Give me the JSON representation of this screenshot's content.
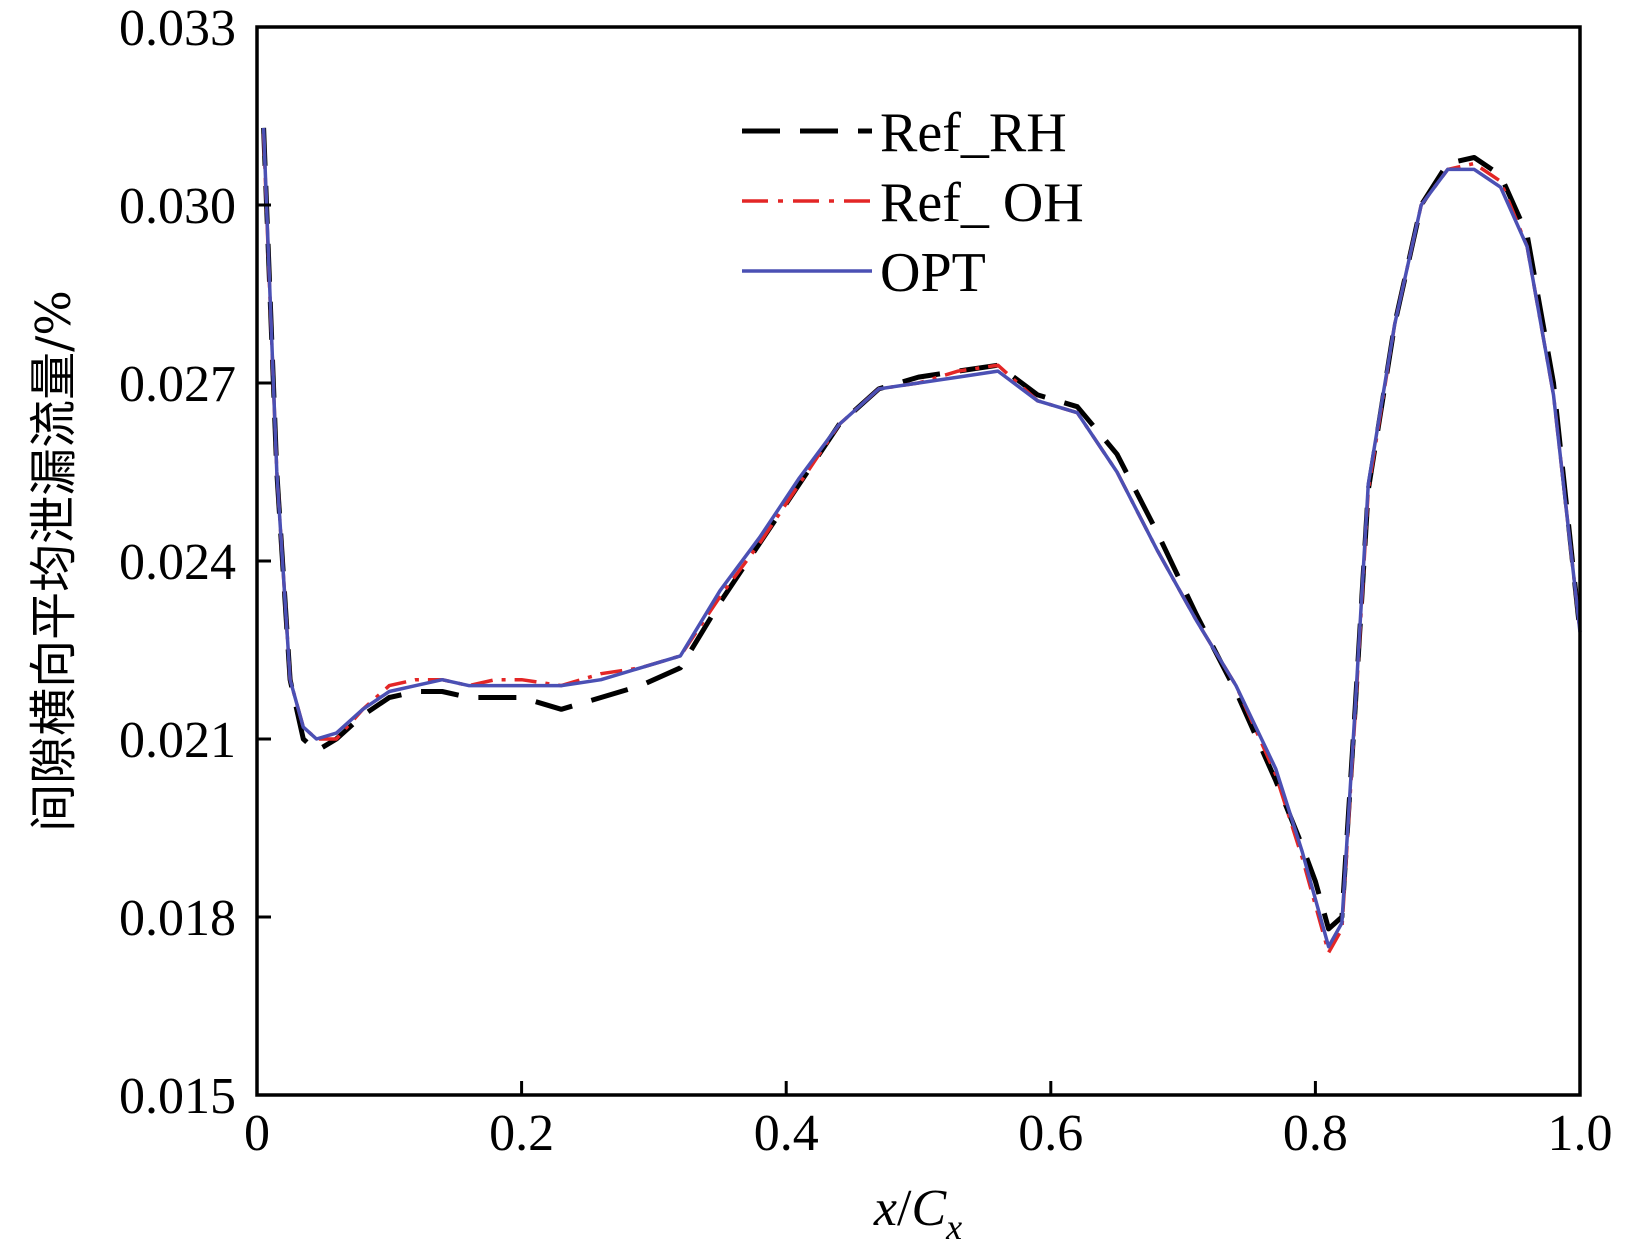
{
  "chart_data": {
    "type": "line",
    "title": "",
    "xlabel": {
      "main": "x",
      "slash": "/",
      "sym": "C",
      "sub": "x"
    },
    "ylabel": "间隙横向平均泄漏流量/%",
    "xlim": [
      0,
      1.0
    ],
    "ylim": [
      0.015,
      0.033
    ],
    "xticks": [
      0,
      0.2,
      0.4,
      0.6,
      0.8,
      1.0
    ],
    "xtick_labels": [
      "0",
      "0.2",
      "0.4",
      "0.6",
      "0.8",
      "1.0"
    ],
    "yticks": [
      0.015,
      0.018,
      0.021,
      0.024,
      0.027,
      0.03,
      0.033
    ],
    "ytick_labels": [
      "0.015",
      "0.018",
      "0.021",
      "0.024",
      "0.027",
      "0.030",
      "0.033"
    ],
    "grid": false,
    "legend_position": "top-center",
    "series": [
      {
        "name": "Ref_RH",
        "color": "#000000",
        "style": "dashed",
        "x": [
          0.005,
          0.015,
          0.025,
          0.035,
          0.045,
          0.06,
          0.08,
          0.1,
          0.12,
          0.14,
          0.16,
          0.18,
          0.2,
          0.23,
          0.26,
          0.29,
          0.32,
          0.35,
          0.38,
          0.41,
          0.44,
          0.47,
          0.5,
          0.53,
          0.56,
          0.59,
          0.62,
          0.65,
          0.68,
          0.71,
          0.74,
          0.77,
          0.79,
          0.8,
          0.81,
          0.82,
          0.83,
          0.84,
          0.86,
          0.88,
          0.9,
          0.92,
          0.94,
          0.96,
          0.98,
          1.0
        ],
        "y": [
          0.0313,
          0.0255,
          0.022,
          0.021,
          0.0208,
          0.021,
          0.0214,
          0.0217,
          0.0218,
          0.0218,
          0.0217,
          0.0217,
          0.0217,
          0.0215,
          0.0217,
          0.0219,
          0.0222,
          0.0233,
          0.0243,
          0.0253,
          0.0263,
          0.0269,
          0.0271,
          0.0272,
          0.0273,
          0.0268,
          0.0266,
          0.0258,
          0.0245,
          0.0231,
          0.0218,
          0.0203,
          0.0192,
          0.0186,
          0.0178,
          0.018,
          0.0215,
          0.0252,
          0.028,
          0.03,
          0.0307,
          0.0308,
          0.0305,
          0.0295,
          0.027,
          0.0228
        ]
      },
      {
        "name": "Ref_ OH",
        "color": "#e32626",
        "style": "dashdot",
        "x": [
          0.005,
          0.015,
          0.025,
          0.035,
          0.045,
          0.06,
          0.08,
          0.1,
          0.12,
          0.14,
          0.16,
          0.18,
          0.2,
          0.23,
          0.26,
          0.29,
          0.32,
          0.35,
          0.38,
          0.41,
          0.44,
          0.47,
          0.5,
          0.53,
          0.56,
          0.59,
          0.62,
          0.65,
          0.68,
          0.71,
          0.74,
          0.77,
          0.79,
          0.8,
          0.81,
          0.82,
          0.83,
          0.84,
          0.86,
          0.88,
          0.9,
          0.92,
          0.94,
          0.96,
          0.98,
          1.0
        ],
        "y": [
          0.0312,
          0.0255,
          0.022,
          0.0212,
          0.021,
          0.021,
          0.0215,
          0.0219,
          0.022,
          0.022,
          0.0219,
          0.022,
          0.022,
          0.0219,
          0.0221,
          0.0222,
          0.0224,
          0.0234,
          0.0243,
          0.0253,
          0.0263,
          0.0269,
          0.027,
          0.0272,
          0.0273,
          0.0267,
          0.0265,
          0.0255,
          0.0242,
          0.023,
          0.0219,
          0.0204,
          0.019,
          0.0182,
          0.0174,
          0.0178,
          0.0214,
          0.0252,
          0.028,
          0.03,
          0.0306,
          0.0307,
          0.0304,
          0.0293,
          0.0268,
          0.0228
        ]
      },
      {
        "name": "OPT",
        "color": "#4b50b4",
        "style": "solid",
        "x": [
          0.005,
          0.015,
          0.025,
          0.035,
          0.045,
          0.06,
          0.08,
          0.1,
          0.12,
          0.14,
          0.16,
          0.18,
          0.2,
          0.23,
          0.26,
          0.29,
          0.32,
          0.35,
          0.38,
          0.41,
          0.44,
          0.47,
          0.5,
          0.53,
          0.56,
          0.59,
          0.62,
          0.65,
          0.68,
          0.71,
          0.74,
          0.77,
          0.79,
          0.8,
          0.81,
          0.82,
          0.83,
          0.84,
          0.86,
          0.88,
          0.9,
          0.92,
          0.94,
          0.96,
          0.98,
          1.0
        ],
        "y": [
          0.0313,
          0.0255,
          0.022,
          0.0212,
          0.021,
          0.0211,
          0.0215,
          0.0218,
          0.0219,
          0.022,
          0.0219,
          0.0219,
          0.0219,
          0.0219,
          0.022,
          0.0222,
          0.0224,
          0.0235,
          0.0244,
          0.0254,
          0.0263,
          0.0269,
          0.027,
          0.0271,
          0.0272,
          0.0267,
          0.0265,
          0.0255,
          0.0242,
          0.023,
          0.0219,
          0.0205,
          0.0191,
          0.0183,
          0.0175,
          0.0179,
          0.0215,
          0.0253,
          0.028,
          0.03,
          0.0306,
          0.0306,
          0.0303,
          0.0293,
          0.0268,
          0.0228
        ]
      }
    ]
  }
}
